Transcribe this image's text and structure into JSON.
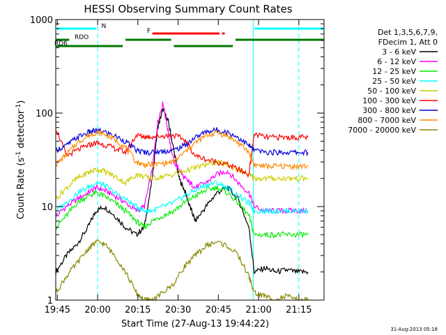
{
  "chart_data": {
    "type": "line",
    "title": "HESSI Observing Summary Count Rates",
    "xlabel": "Start Time (27-Aug-13 19:44:22)",
    "ylabel": "Count Rate (s",
    "ylabel_exp1": "-1",
    "ylabel_mid": " detector",
    "ylabel_exp2": "-1",
    "ylabel_end": ")",
    "yscale": "log",
    "ylim": [
      1,
      1000
    ],
    "xlim_minutes": [
      0,
      100
    ],
    "x_ticks": [
      "19:45",
      "20:00",
      "20:15",
      "20:30",
      "20:45",
      "21:00",
      "21:15"
    ],
    "x_tick_minutes": [
      0.6,
      15.6,
      30.6,
      45.6,
      60.6,
      75.6,
      90.6
    ],
    "y_ticks": [
      "1",
      "10",
      "100",
      "1000"
    ],
    "y_tick_values": [
      1,
      10,
      100,
      1000
    ],
    "footer": "31-Aug-2013 05:18",
    "legend": {
      "header1": "Det 1,3,5,6,7,9,",
      "header2": "FDecim 1, Att 0",
      "entries": [
        {
          "label": "3 - 6 keV",
          "color": "#000000"
        },
        {
          "label": "6 - 12 keV",
          "color": "#ff00ff"
        },
        {
          "label": "12 - 25 keV",
          "color": "#00ee00"
        },
        {
          "label": "25 - 50 keV",
          "color": "#00ffff"
        },
        {
          "label": "50 - 100 keV",
          "color": "#cccc00"
        },
        {
          "label": "100 - 300 keV",
          "color": "#ff0000"
        },
        {
          "label": "300 - 800 keV",
          "color": "#0000dd"
        },
        {
          "label": "800 - 7000 keV",
          "color": "#ff8800"
        },
        {
          "label": "7000 - 20000 keV",
          "color": "#888800"
        }
      ]
    },
    "vlines_cyan_solid_minutes": [
      0,
      73.6
    ],
    "vlines_cyan_dashed_minutes": [
      15.6,
      90.6
    ],
    "flags": [
      {
        "label": "N",
        "color": "#00ffff",
        "segments": [
          [
            0,
            15
          ],
          [
            74,
            100
          ]
        ],
        "row": 0,
        "label_at": 17
      },
      {
        "label": "F",
        "color": "#ff0000",
        "segments": [
          [
            36,
            61
          ],
          [
            62,
            63
          ]
        ],
        "row": 1,
        "label_at": 34
      },
      {
        "label": "RDO",
        "color": "#007700",
        "segments": [
          [
            0,
            5
          ],
          [
            26,
            43
          ],
          [
            67,
            100
          ]
        ],
        "row": 2,
        "label_at": 7
      },
      {
        "label": "RD6",
        "color": "#007700",
        "segments": [
          [
            0,
            25
          ],
          [
            44,
            66
          ]
        ],
        "row": 3,
        "label_at": -1
      }
    ],
    "series": [
      {
        "name": "3 - 6 keV",
        "color": "#000000",
        "x": [
          0,
          4,
          8,
          12,
          15,
          18,
          22,
          26,
          30,
          33,
          36,
          38,
          40,
          42,
          44,
          46,
          48,
          50,
          52,
          56,
          60,
          64,
          68,
          72,
          74,
          78,
          82,
          86,
          90,
          94
        ],
        "y": [
          2,
          3,
          4,
          6,
          9,
          10,
          8,
          6,
          5,
          6,
          20,
          70,
          110,
          80,
          40,
          20,
          15,
          10,
          7,
          10,
          14,
          16,
          12,
          6,
          2,
          2.2,
          2,
          2.1,
          2,
          2
        ]
      },
      {
        "name": "6 - 12 keV",
        "color": "#ff00ff",
        "x": [
          0,
          4,
          8,
          12,
          15,
          18,
          22,
          26,
          30,
          33,
          36,
          38,
          40,
          42,
          44,
          46,
          48,
          50,
          52,
          56,
          60,
          64,
          68,
          72,
          74,
          78,
          82,
          86,
          90,
          94
        ],
        "y": [
          8,
          10,
          12,
          14,
          16,
          15,
          13,
          11,
          9,
          10,
          25,
          80,
          130,
          60,
          30,
          25,
          20,
          18,
          16,
          18,
          22,
          24,
          18,
          14,
          10,
          9,
          9,
          9,
          9,
          9
        ]
      },
      {
        "name": "12 - 25 keV",
        "color": "#00ee00",
        "x": [
          0,
          4,
          8,
          12,
          15,
          18,
          22,
          26,
          30,
          33,
          36,
          40,
          44,
          48,
          52,
          56,
          60,
          64,
          68,
          72,
          74,
          78,
          82,
          86,
          90,
          94
        ],
        "y": [
          6,
          8,
          11,
          13,
          14,
          13,
          11,
          9,
          7,
          6,
          7,
          8,
          9,
          11,
          13,
          15,
          16,
          14,
          11,
          8,
          5,
          5,
          5,
          5,
          5,
          5
        ]
      },
      {
        "name": "25 - 50 keV",
        "color": "#00ffff",
        "x": [
          0,
          4,
          8,
          12,
          15,
          18,
          22,
          26,
          30,
          33,
          36,
          40,
          44,
          48,
          52,
          56,
          60,
          64,
          68,
          72,
          74,
          78,
          82,
          86,
          90,
          94
        ],
        "y": [
          9,
          11,
          14,
          16,
          18,
          17,
          14,
          12,
          10,
          9,
          9,
          10,
          11,
          13,
          15,
          17,
          18,
          16,
          13,
          11,
          9,
          9,
          9,
          9,
          9,
          9
        ]
      },
      {
        "name": "50 - 100 keV",
        "color": "#cccc00",
        "x": [
          0,
          4,
          8,
          12,
          15,
          18,
          22,
          26,
          30,
          33,
          36,
          40,
          44,
          48,
          52,
          56,
          60,
          64,
          68,
          72,
          74,
          78,
          82,
          86,
          90,
          94
        ],
        "y": [
          12,
          16,
          20,
          23,
          25,
          24,
          21,
          18,
          22,
          21,
          20,
          21,
          22,
          24,
          26,
          28,
          30,
          28,
          25,
          22,
          20,
          20,
          20,
          20,
          20,
          20
        ]
      },
      {
        "name": "100 - 300 keV",
        "color": "#ff0000",
        "x": [
          0,
          4,
          8,
          12,
          15,
          18,
          22,
          26,
          30,
          33,
          36,
          40,
          44,
          48,
          52,
          56,
          60,
          64,
          68,
          72,
          74,
          78,
          82,
          86,
          90,
          94
        ],
        "y": [
          70,
          35,
          40,
          45,
          48,
          46,
          42,
          38,
          58,
          56,
          56,
          57,
          58,
          52,
          35,
          32,
          30,
          28,
          25,
          22,
          60,
          55,
          55,
          55,
          55,
          55
        ]
      },
      {
        "name": "300 - 800 keV",
        "color": "#0000dd",
        "x": [
          0,
          4,
          8,
          12,
          15,
          18,
          22,
          26,
          30,
          33,
          36,
          40,
          44,
          48,
          52,
          56,
          60,
          64,
          68,
          72,
          74,
          78,
          82,
          86,
          90,
          94
        ],
        "y": [
          40,
          45,
          55,
          62,
          65,
          63,
          57,
          50,
          40,
          38,
          38,
          39,
          40,
          45,
          55,
          63,
          66,
          62,
          55,
          45,
          40,
          38,
          38,
          38,
          38,
          38
        ]
      },
      {
        "name": "800 - 7000 keV",
        "color": "#ff8800",
        "x": [
          0,
          4,
          8,
          12,
          15,
          18,
          22,
          26,
          30,
          33,
          36,
          40,
          44,
          48,
          52,
          56,
          60,
          64,
          68,
          72,
          74,
          78,
          82,
          86,
          90,
          94
        ],
        "y": [
          28,
          36,
          48,
          57,
          62,
          60,
          52,
          43,
          30,
          28,
          28,
          29,
          30,
          38,
          48,
          57,
          62,
          57,
          48,
          38,
          28,
          27,
          27,
          27,
          27,
          27
        ]
      },
      {
        "name": "7000 - 20000 keV",
        "color": "#888800",
        "x": [
          0,
          4,
          8,
          12,
          15,
          18,
          22,
          26,
          30,
          33,
          36,
          40,
          44,
          48,
          52,
          56,
          60,
          64,
          68,
          72,
          74,
          78,
          82,
          86,
          90,
          94
        ],
        "y": [
          1.2,
          1.8,
          2.5,
          3.5,
          4.2,
          4,
          3,
          2,
          1.2,
          1,
          1,
          1.2,
          1.5,
          2.3,
          3,
          3.8,
          4.2,
          3.8,
          3,
          1.8,
          1.2,
          1.1,
          1,
          1.1,
          1,
          1
        ]
      }
    ]
  }
}
